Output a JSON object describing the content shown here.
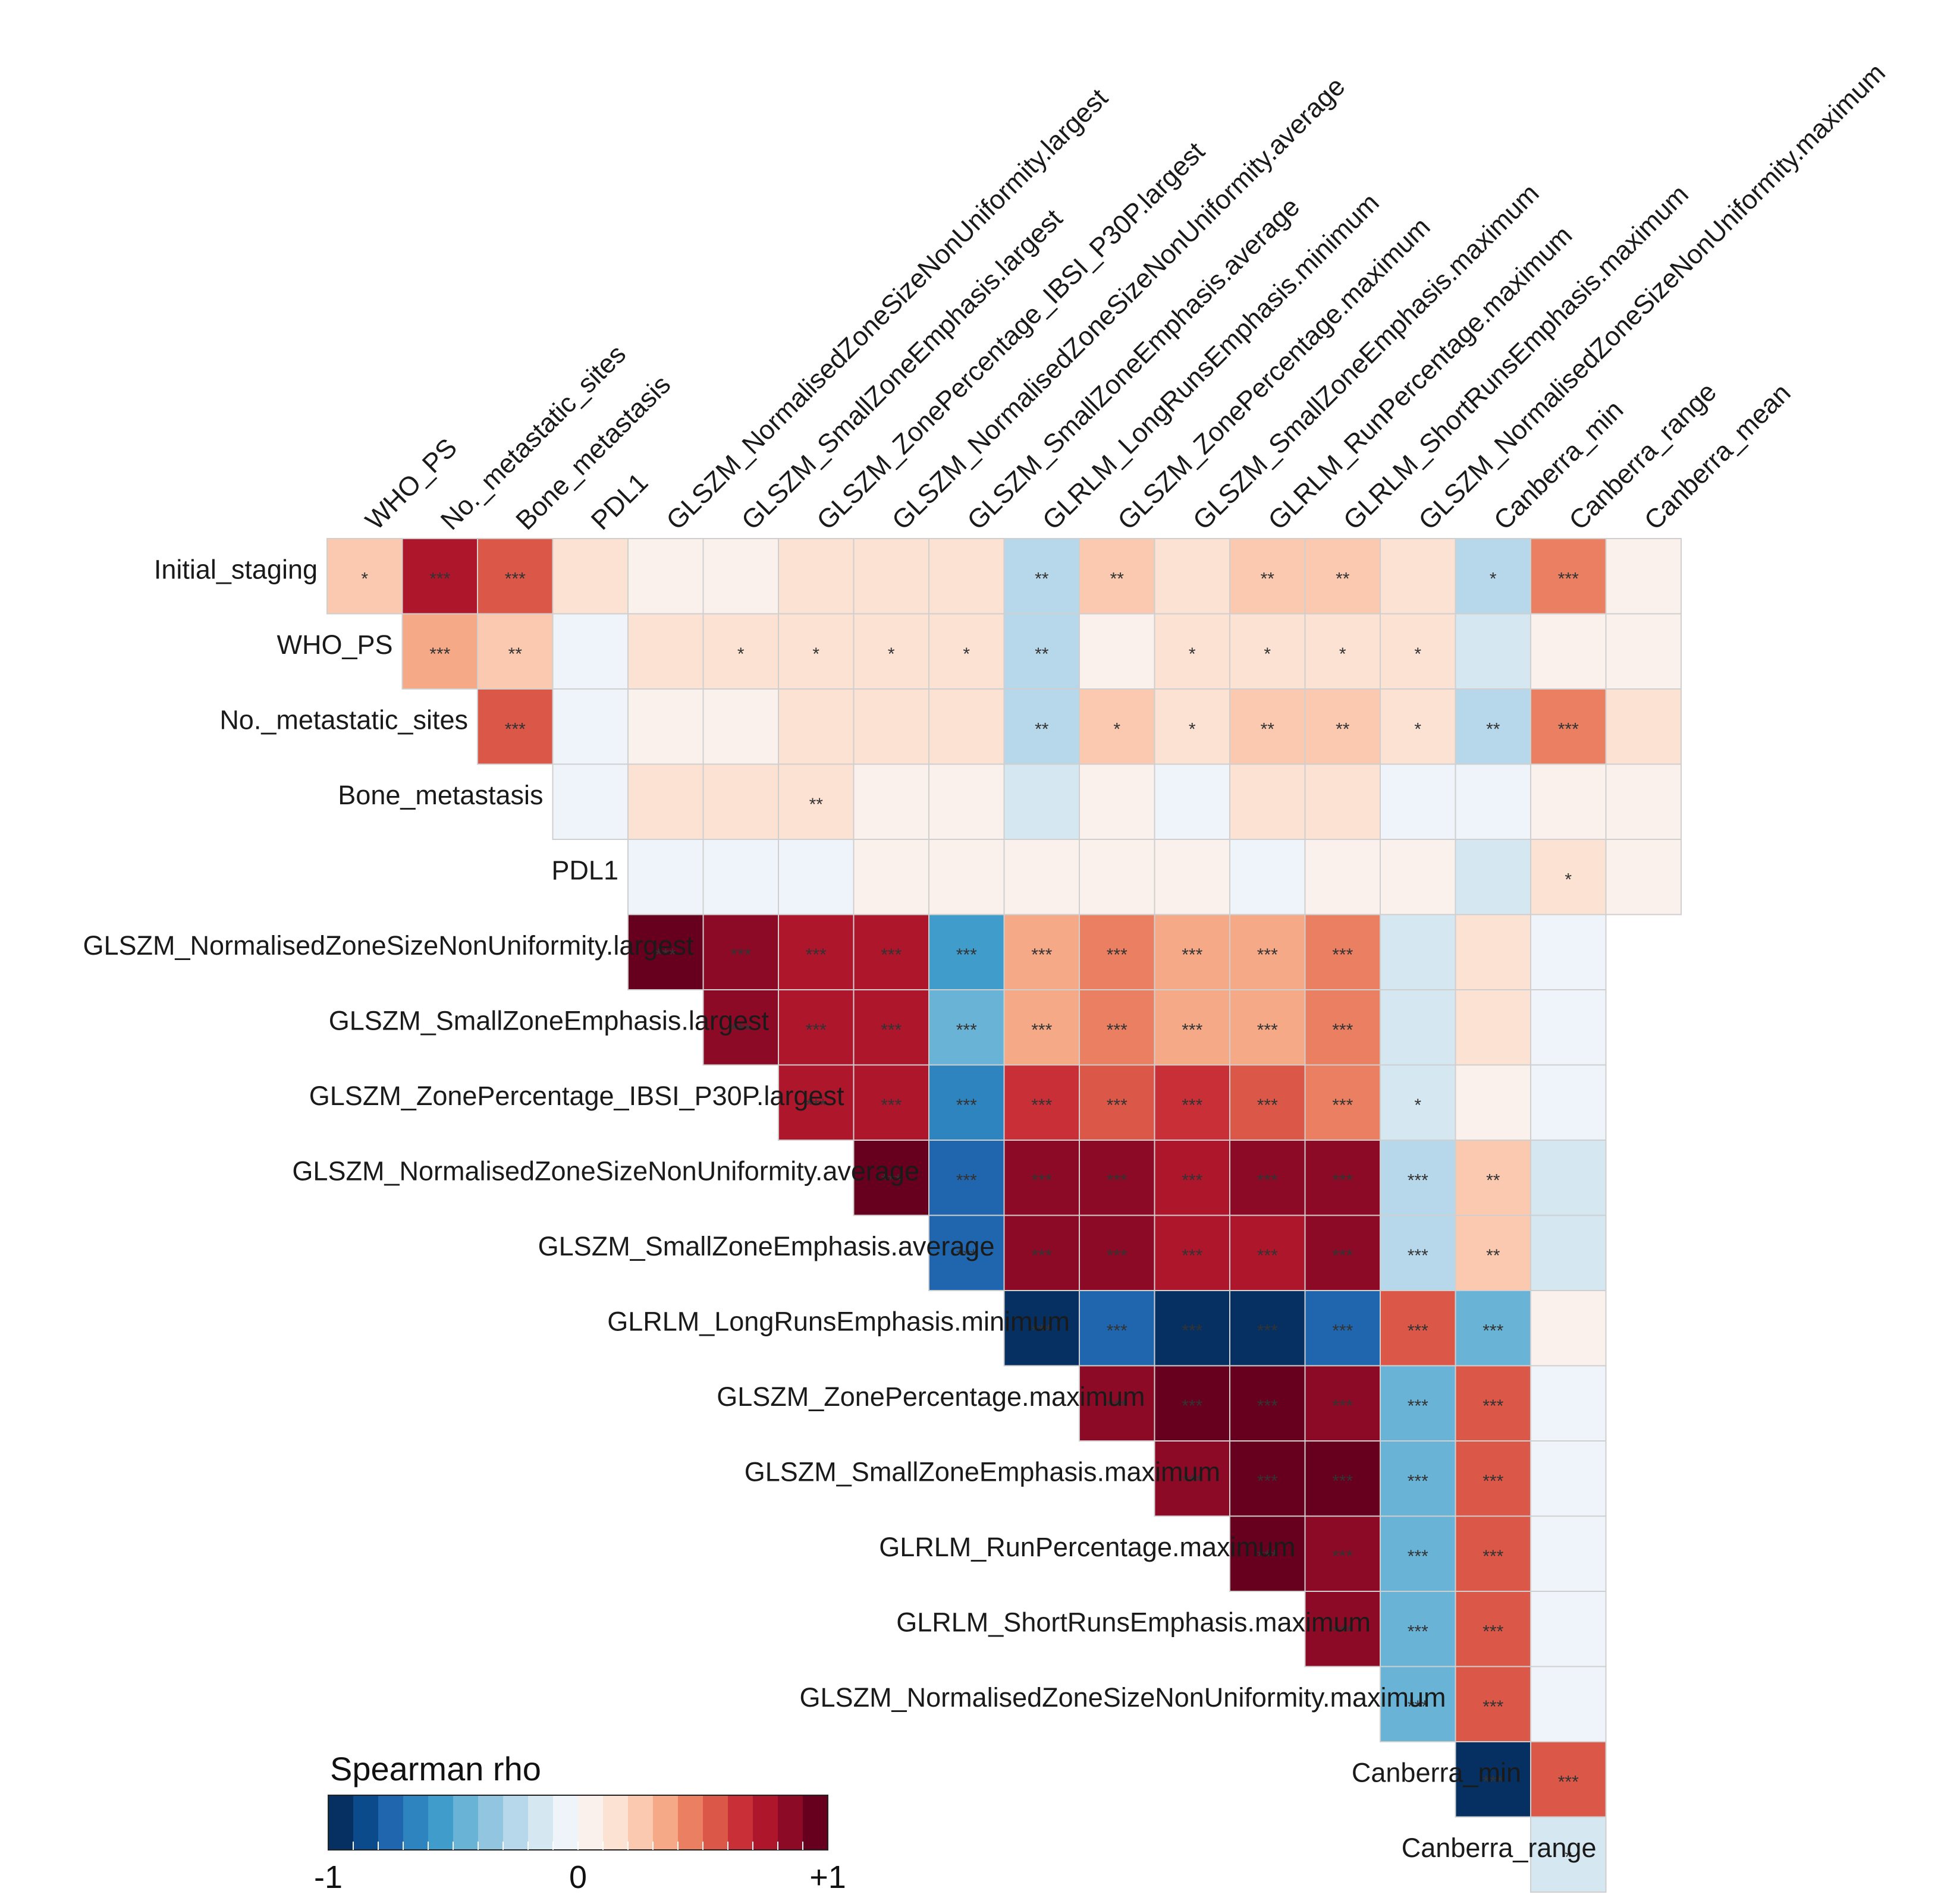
{
  "chart_data": {
    "type": "heatmap",
    "title": "",
    "variables": [
      "Initial_staging",
      "WHO_PS",
      "No._metastatic_sites",
      "Bone_metastasis",
      "PDL1",
      "GLSZM_NormalisedZoneSizeNonUniformity.largest",
      "GLSZM_SmallZoneEmphasis.largest",
      "GLSZM_ZonePercentage_IBSI_P30P.largest",
      "GLSZM_NormalisedZoneSizeNonUniformity.average",
      "GLSZM_SmallZoneEmphasis.average",
      "GLRLM_LongRunsEmphasis.minimum",
      "GLSZM_ZonePercentage.maximum",
      "GLSZM_SmallZoneEmphasis.maximum",
      "GLRLM_RunPercentage.maximum",
      "GLRLM_ShortRunsEmphasis.maximum",
      "GLSZM_NormalisedZoneSizeNonUniformity.maximum",
      "Canberra_min",
      "Canberra_range",
      "Canberra_mean"
    ],
    "rows": [
      "Initial_staging",
      "WHO_PS",
      "No._metastatic_sites",
      "Bone_metastasis",
      "PDL1",
      "GLSZM_NormalisedZoneSizeNonUniformity.largest",
      "GLSZM_SmallZoneEmphasis.largest",
      "GLSZM_ZonePercentage_IBSI_P30P.largest",
      "GLSZM_NormalisedZoneSizeNonUniformity.average",
      "GLSZM_SmallZoneEmphasis.average",
      "GLRLM_LongRunsEmphasis.minimum",
      "GLSZM_ZonePercentage.maximum",
      "GLSZM_SmallZoneEmphasis.maximum",
      "GLRLM_RunPercentage.maximum",
      "GLRLM_ShortRunsEmphasis.maximum",
      "GLSZM_NormalisedZoneSizeNonUniformity.maximum",
      "Canberra_min",
      "Canberra_range"
    ],
    "columns": [
      "WHO_PS",
      "No._metastatic_sites",
      "Bone_metastasis",
      "PDL1",
      "GLSZM_NormalisedZoneSizeNonUniformity.largest",
      "GLSZM_SmallZoneEmphasis.largest",
      "GLSZM_ZonePercentage_IBSI_P30P.largest",
      "GLSZM_NormalisedZoneSizeNonUniformity.average",
      "GLSZM_SmallZoneEmphasis.average",
      "GLRLM_LongRunsEmphasis.minimum",
      "GLSZM_ZonePercentage.maximum",
      "GLSZM_SmallZoneEmphasis.maximum",
      "GLRLM_RunPercentage.maximum",
      "GLRLM_ShortRunsEmphasis.maximum",
      "GLSZM_NormalisedZoneSizeNonUniformity.maximum",
      "Canberra_min",
      "Canberra_range",
      "Canberra_mean"
    ],
    "rho": [
      [
        0.25,
        0.7,
        0.5,
        0.15,
        0.05,
        0.08,
        0.12,
        0.1,
        0.1,
        -0.3,
        0.22,
        0.1,
        0.2,
        0.2,
        0.1,
        -0.3,
        0.45,
        0.05
      ],
      [
        null,
        0.3,
        0.25,
        -0.05,
        0.12,
        0.14,
        0.15,
        0.18,
        0.18,
        -0.3,
        0.08,
        0.12,
        0.15,
        0.12,
        0.12,
        -0.15,
        0.08,
        0.05
      ],
      [
        null,
        null,
        0.5,
        -0.05,
        0.05,
        0.05,
        0.1,
        0.1,
        0.1,
        -0.3,
        0.2,
        0.15,
        0.2,
        0.2,
        0.15,
        -0.3,
        0.45,
        0.12
      ],
      [
        null,
        null,
        null,
        -0.05,
        0.12,
        0.12,
        0.18,
        0.05,
        0.05,
        -0.15,
        0.05,
        -0.05,
        0.12,
        0.12,
        -0.05,
        -0.05,
        0.05,
        0.05
      ],
      [
        null,
        null,
        null,
        null,
        -0.08,
        -0.08,
        -0.08,
        0.05,
        0.05,
        0.05,
        0.05,
        0.05,
        -0.05,
        0.05,
        0.05,
        -0.15,
        0.12,
        0.08
      ],
      [
        null,
        null,
        null,
        null,
        0.95,
        0.8,
        0.72,
        0.72,
        -0.55,
        0.32,
        0.45,
        0.35,
        0.35,
        0.4,
        -0.15,
        0.12,
        -0.05
      ],
      [
        null,
        null,
        null,
        null,
        null,
        0.8,
        0.72,
        0.72,
        -0.5,
        0.35,
        0.45,
        0.35,
        0.35,
        0.45,
        -0.15,
        0.12,
        -0.05
      ],
      [
        null,
        null,
        null,
        null,
        null,
        null,
        0.72,
        0.75,
        -0.65,
        0.6,
        0.55,
        0.6,
        0.55,
        0.45,
        -0.12,
        0.05,
        -0.05
      ],
      [
        null,
        null,
        null,
        null,
        null,
        null,
        null,
        0.95,
        -0.75,
        0.8,
        0.85,
        0.72,
        0.8,
        0.85,
        -0.28,
        0.25,
        -0.15
      ],
      [
        null,
        null,
        null,
        null,
        null,
        null,
        null,
        null,
        -0.75,
        0.8,
        0.85,
        0.72,
        0.72,
        0.85,
        -0.28,
        0.25,
        -0.15
      ],
      [
        null,
        null,
        null,
        null,
        null,
        null,
        null,
        null,
        null,
        -0.95,
        -0.78,
        -0.95,
        -0.95,
        -0.78,
        0.5,
        -0.5,
        0.05
      ],
      [
        null,
        null,
        null,
        null,
        null,
        null,
        null,
        null,
        null,
        null,
        0.85,
        0.95,
        0.95,
        0.85,
        -0.5,
        0.5,
        -0.05
      ],
      [
        null,
        null,
        null,
        null,
        null,
        null,
        null,
        null,
        null,
        null,
        null,
        0.8,
        0.9,
        0.95,
        -0.5,
        0.5,
        -0.05
      ],
      [
        null,
        null,
        null,
        null,
        null,
        null,
        null,
        null,
        null,
        null,
        null,
        null,
        0.95,
        0.8,
        -0.5,
        0.5,
        -0.05
      ],
      [
        null,
        null,
        null,
        null,
        null,
        null,
        null,
        null,
        null,
        null,
        null,
        null,
        null,
        0.85,
        -0.5,
        0.5,
        -0.05
      ],
      [
        null,
        null,
        null,
        null,
        null,
        null,
        null,
        null,
        null,
        null,
        null,
        null,
        null,
        null,
        -0.5,
        0.5,
        -0.05
      ],
      [
        null,
        null,
        null,
        null,
        null,
        null,
        null,
        null,
        null,
        null,
        null,
        null,
        null,
        null,
        null,
        -0.95,
        0.55
      ],
      [
        null,
        null,
        null,
        null,
        null,
        null,
        null,
        null,
        null,
        null,
        null,
        null,
        null,
        null,
        null,
        null,
        -0.15
      ]
    ],
    "significance": [
      [
        "*",
        "***",
        "***",
        "",
        "",
        "",
        "",
        "",
        "",
        "**",
        "**",
        "",
        "**",
        "**",
        "",
        "*",
        "***",
        ""
      ],
      [
        null,
        "***",
        "**",
        "",
        "",
        "*",
        "*",
        "*",
        "*",
        "**",
        "",
        "*",
        "*",
        "*",
        "*",
        "",
        "",
        ""
      ],
      [
        null,
        null,
        "***",
        "",
        "",
        "",
        "",
        "",
        "",
        "**",
        "*",
        "*",
        "**",
        "**",
        "*",
        "**",
        "***",
        ""
      ],
      [
        null,
        null,
        null,
        "",
        "",
        "",
        "**",
        "",
        "",
        "",
        "",
        "",
        "",
        "",
        "",
        "",
        "",
        ""
      ],
      [
        null,
        null,
        null,
        null,
        "",
        "",
        "",
        "",
        "",
        "",
        "",
        "",
        "",
        "",
        "",
        "",
        "*",
        ""
      ],
      [
        null,
        null,
        null,
        null,
        "***",
        "***",
        "***",
        "***",
        "***",
        "***",
        "***",
        "***",
        "***",
        "***",
        "",
        "",
        ""
      ],
      [
        null,
        null,
        null,
        null,
        null,
        "***",
        "***",
        "***",
        "***",
        "***",
        "***",
        "***",
        "***",
        "***",
        "",
        "",
        ""
      ],
      [
        null,
        null,
        null,
        null,
        null,
        null,
        "***",
        "***",
        "***",
        "***",
        "***",
        "***",
        "***",
        "***",
        "*",
        "",
        ""
      ],
      [
        null,
        null,
        null,
        null,
        null,
        null,
        null,
        "***",
        "***",
        "***",
        "***",
        "***",
        "***",
        "***",
        "***",
        "**",
        ""
      ],
      [
        null,
        null,
        null,
        null,
        null,
        null,
        null,
        null,
        "***",
        "***",
        "***",
        "***",
        "***",
        "***",
        "***",
        "**",
        ""
      ],
      [
        null,
        null,
        null,
        null,
        null,
        null,
        null,
        null,
        null,
        "***",
        "***",
        "***",
        "***",
        "***",
        "***",
        "***",
        ""
      ],
      [
        null,
        null,
        null,
        null,
        null,
        null,
        null,
        null,
        null,
        null,
        "***",
        "***",
        "***",
        "***",
        "***",
        "***",
        ""
      ],
      [
        null,
        null,
        null,
        null,
        null,
        null,
        null,
        null,
        null,
        null,
        null,
        "***",
        "***",
        "***",
        "***",
        "***",
        ""
      ],
      [
        null,
        null,
        null,
        null,
        null,
        null,
        null,
        null,
        null,
        null,
        null,
        null,
        "***",
        "***",
        "***",
        "***",
        ""
      ],
      [
        null,
        null,
        null,
        null,
        null,
        null,
        null,
        null,
        null,
        null,
        null,
        null,
        null,
        "***",
        "***",
        "***",
        ""
      ],
      [
        null,
        null,
        null,
        null,
        null,
        null,
        null,
        null,
        null,
        null,
        null,
        null,
        null,
        null,
        "***",
        "***",
        ""
      ],
      [
        null,
        null,
        null,
        null,
        null,
        null,
        null,
        null,
        null,
        null,
        null,
        null,
        null,
        null,
        null,
        "***",
        "***"
      ],
      [
        null,
        null,
        null,
        null,
        null,
        null,
        null,
        null,
        null,
        null,
        null,
        null,
        null,
        null,
        null,
        null,
        "*"
      ]
    ],
    "legend": {
      "title": "Spearman rho",
      "range": [
        -1,
        1
      ],
      "tick_labels": [
        "-1",
        "0",
        "+1"
      ],
      "placement": "bottom-left"
    },
    "palette": [
      "#053061",
      "#0b4a8b",
      "#1f66ae",
      "#2e84be",
      "#3f9ccb",
      "#69b3d6",
      "#92c6e0",
      "#b7d8ea",
      "#d5e7f1",
      "#eef4f9",
      "#fbf1ec",
      "#fce2d3",
      "#fac9af",
      "#f5a987",
      "#ea8061",
      "#db5747",
      "#c82f36",
      "#ae162b",
      "#8c0a25",
      "#67001f"
    ]
  }
}
